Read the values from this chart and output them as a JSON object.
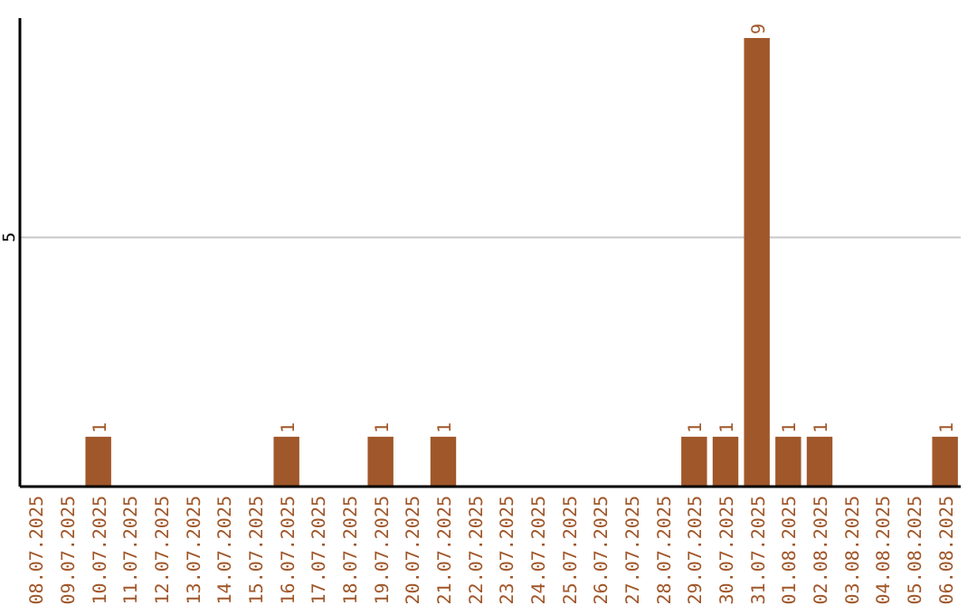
{
  "chart_data": {
    "type": "bar",
    "categories": [
      "08.07.2025",
      "09.07.2025",
      "10.07.2025",
      "11.07.2025",
      "12.07.2025",
      "13.07.2025",
      "14.07.2025",
      "15.07.2025",
      "16.07.2025",
      "17.07.2025",
      "18.07.2025",
      "19.07.2025",
      "20.07.2025",
      "21.07.2025",
      "22.07.2025",
      "23.07.2025",
      "24.07.2025",
      "25.07.2025",
      "26.07.2025",
      "27.07.2025",
      "28.07.2025",
      "29.07.2025",
      "30.07.2025",
      "31.07.2025",
      "01.08.2025",
      "02.08.2025",
      "03.08.2025",
      "04.08.2025",
      "05.08.2025",
      "06.08.2025"
    ],
    "values": [
      0,
      0,
      1,
      0,
      0,
      0,
      0,
      0,
      1,
      0,
      0,
      1,
      0,
      1,
      0,
      0,
      0,
      0,
      0,
      0,
      0,
      1,
      1,
      9,
      1,
      1,
      0,
      0,
      0,
      1
    ],
    "value_labels": [
      null,
      null,
      "1",
      null,
      null,
      null,
      null,
      null,
      "1",
      null,
      null,
      "1",
      null,
      "1",
      null,
      null,
      null,
      null,
      null,
      null,
      null,
      "1",
      "1",
      "9",
      "1",
      "1",
      null,
      null,
      null,
      "1"
    ],
    "color": "#a0572a",
    "ylim": [
      0,
      9.4
    ],
    "yticks": [
      5
    ],
    "grid": "y"
  }
}
